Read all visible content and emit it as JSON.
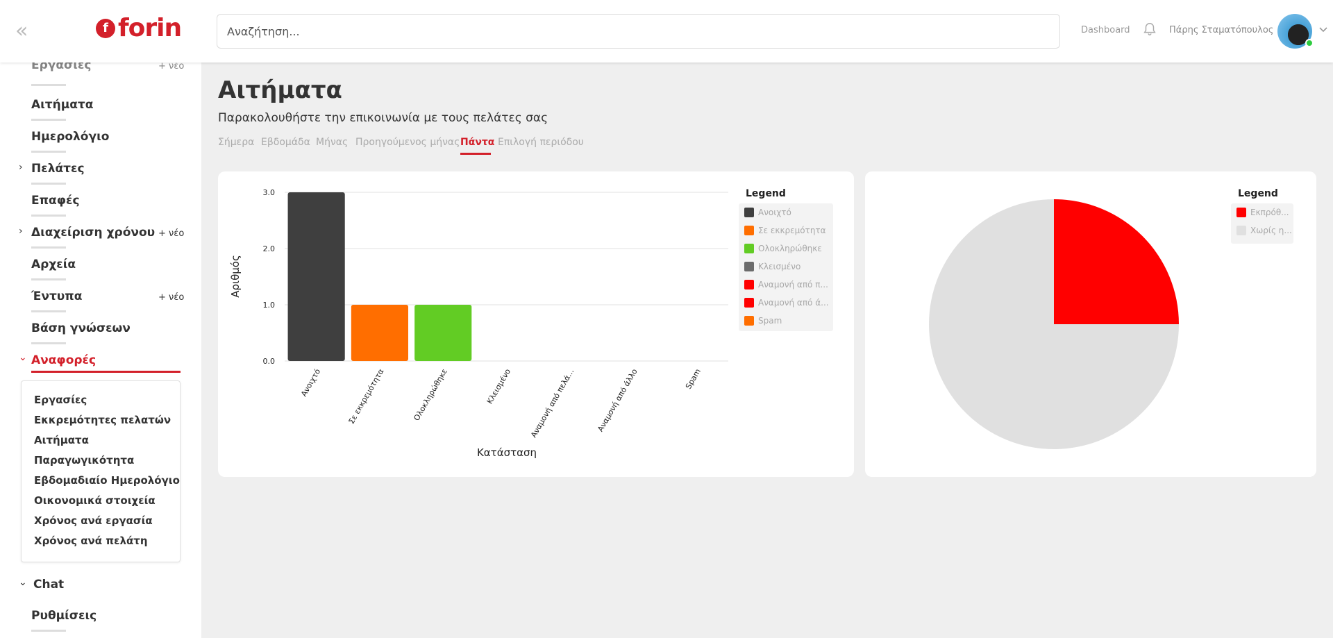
{
  "header": {
    "logo_text": "forin",
    "logo_mark": "f",
    "search_placeholder": "Αναζήτηση...",
    "dashboard_link": "Dashboard",
    "user_name": "Πάρης Σταματόπουλος"
  },
  "sidebar": {
    "items": [
      {
        "label": "Αιτήματα"
      },
      {
        "label": "Ημερολόγιο"
      },
      {
        "label": "Πελάτες"
      },
      {
        "label": "Επαφές"
      },
      {
        "label": "Διαχείριση χρόνου"
      },
      {
        "label": "Αρχεία"
      },
      {
        "label": "Έντυπα"
      },
      {
        "label": "Βάση γνώσεων"
      },
      {
        "label": "Αναφορές"
      },
      {
        "label": "Chat"
      },
      {
        "label": "Ρυθμίσεις"
      }
    ],
    "partial_top": "Εργασίες",
    "partial_new": "+ νέο",
    "plus_new": "+ νέο",
    "chevron_right": "›",
    "chevron_down": "⌄",
    "submenu": [
      "Εργασίες",
      "Εκκρεμότητες πελατών",
      "Αιτήματα",
      "Παραγωγικότητα",
      "Εβδομαδιαίο Ημερολόγιο",
      "Οικονομικά στοιχεία",
      "Χρόνος ανά εργασία",
      "Χρόνος ανά πελάτη"
    ]
  },
  "main": {
    "title": "Αιτήματα",
    "subtitle": "Παρακολουθήστε την επικοινωνία με τους πελάτες σας",
    "tabs": [
      "Σήμερα",
      "Εβδομάδα",
      "Μήνας",
      "Προηγούμενος μήνας",
      "Πάντα",
      "Επιλογή περιόδου"
    ],
    "active_tab": "Πάντα"
  },
  "chart_data": [
    {
      "type": "bar",
      "title": "",
      "xlabel": "Κατάσταση",
      "ylabel": "Αριθμός",
      "ylim": [
        0,
        3
      ],
      "yticks": [
        "0.0",
        "1.0",
        "2.0",
        "3.0"
      ],
      "grid": true,
      "legend_placement": "right",
      "legend_title": "Legend",
      "categories": [
        "Ανοιχτό",
        "Σε εκκρεμότητα",
        "Ολοκληρώθηκε",
        "Κλεισμένο",
        "Αναμονή από πελά...",
        "Αναμονή από άλλο",
        "Spam"
      ],
      "values": [
        3,
        1,
        1,
        0,
        0,
        0,
        0
      ],
      "colors": [
        "#3f3f3f",
        "#ff6e00",
        "#62cc24",
        "#6b6b6b",
        "#ff0000",
        "#ff0000",
        "#ff6e00"
      ],
      "legend": [
        "Ανοιχτό",
        "Σε εκκρεμότητα",
        "Ολοκληρώθηκε",
        "Κλεισμένο",
        "Αναμονή από π...",
        "Αναμονή από ά...",
        "Spam"
      ]
    },
    {
      "type": "pie",
      "title": "",
      "legend_placement": "top-right",
      "legend_title": "Legend",
      "labels": [
        "Εκπρόθ...",
        "Χωρίς η..."
      ],
      "values": [
        25,
        75
      ],
      "colors": [
        "#ff0000",
        "#e0e0e0"
      ]
    }
  ]
}
